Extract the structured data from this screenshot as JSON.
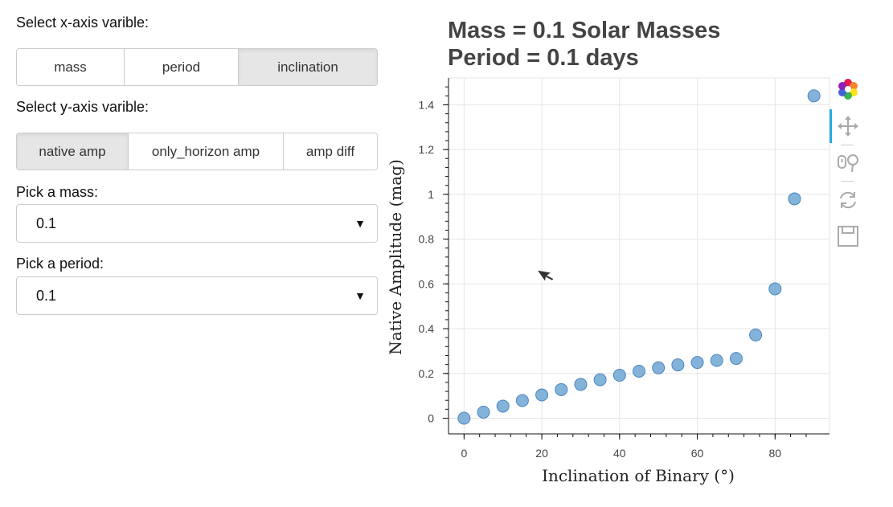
{
  "controls": {
    "x_label": "Select x-axis varible:",
    "x_options": [
      {
        "label": "mass",
        "active": false
      },
      {
        "label": "period",
        "active": false
      },
      {
        "label": "inclination",
        "active": true
      }
    ],
    "y_label": "Select y-axis varible:",
    "y_options": [
      {
        "label": "native amp",
        "active": true
      },
      {
        "label": "only_horizon amp",
        "active": false
      },
      {
        "label": "amp diff",
        "active": false
      }
    ],
    "mass_label": "Pick a mass:",
    "mass_value": "0.1",
    "period_label": "Pick a period:",
    "period_value": "0.1"
  },
  "chart_data": {
    "type": "scatter",
    "title": [
      "Mass = 0.1 Solar Masses",
      "Period = 0.1 days"
    ],
    "xlabel": "Inclination of Binary (°)",
    "ylabel": "Native Amplitude (mag)",
    "xlim": [
      -4,
      94
    ],
    "ylim": [
      -0.07,
      1.52
    ],
    "xticks": [
      0,
      20,
      40,
      60,
      80
    ],
    "yticks": [
      0,
      0.2,
      0.4,
      0.6,
      0.8,
      1,
      1.2,
      1.4
    ],
    "ytick_labels": [
      "0",
      "0.2",
      "0.4",
      "0.6",
      "0.8",
      "1",
      "1.2",
      "1.4"
    ],
    "grid": true,
    "marker_color": "#6fa6d3",
    "x": [
      0,
      5,
      10,
      15,
      20,
      25,
      30,
      35,
      40,
      45,
      50,
      55,
      60,
      65,
      70,
      75,
      80,
      85,
      90
    ],
    "y": [
      0.0,
      0.027,
      0.054,
      0.079,
      0.104,
      0.128,
      0.151,
      0.172,
      0.192,
      0.21,
      0.225,
      0.238,
      0.249,
      0.258,
      0.267,
      0.372,
      0.578,
      0.98,
      1.44
    ]
  },
  "toolbar": {
    "tools": [
      "bokeh-logo-icon",
      "pan-icon",
      "wheel-zoom-icon",
      "reset-icon",
      "save-icon"
    ]
  }
}
